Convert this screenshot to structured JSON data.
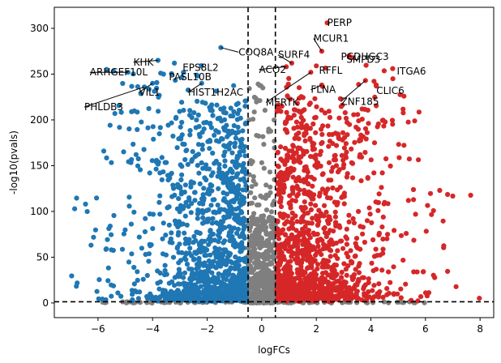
{
  "chart_data": {
    "type": "scatter",
    "title": "",
    "xlabel": "logFCs",
    "ylabel": "-log10(pvals)",
    "xlim": [
      -7.6,
      8.5
    ],
    "ylim": [
      -16,
      323
    ],
    "xticks": [
      -6,
      -4,
      -2,
      0,
      2,
      4,
      6,
      8
    ],
    "yticks": [
      0,
      50,
      100,
      150,
      200,
      250,
      300
    ],
    "grid": false,
    "legend": "none",
    "thresholds": {
      "logfc": [
        -0.5,
        0.5
      ],
      "neglog10p": 1.3
    },
    "colors": {
      "down": "#1f77b4",
      "up": "#d62728",
      "ns": "#7f7f7f",
      "threshold_line": "#000000"
    },
    "labeled_genes": [
      {
        "name": "PERP",
        "x": 2.4,
        "y": 306,
        "tx": 2.4,
        "ty": 306
      },
      {
        "name": "MCUR1",
        "x": 2.2,
        "y": 275,
        "tx": 1.9,
        "ty": 289
      },
      {
        "name": "SURF4",
        "x": 1.1,
        "y": 262,
        "tx": 0.6,
        "ty": 271
      },
      {
        "name": "COQ8A",
        "x": -1.5,
        "y": 279,
        "tx": -0.85,
        "ty": 274
      },
      {
        "name": "PCDHGC3",
        "x": 3.2,
        "y": 270,
        "tx": 2.9,
        "ty": 269
      },
      {
        "name": "SMPD3",
        "x": 3.3,
        "y": 268,
        "tx": 3.1,
        "ty": 266
      },
      {
        "name": "KHK",
        "x": -3.8,
        "y": 265,
        "tx": -4.7,
        "ty": 263
      },
      {
        "name": "EPS8L2",
        "x": -3.2,
        "y": 262,
        "tx": -2.9,
        "ty": 257
      },
      {
        "name": "ACO2",
        "x": 0.9,
        "y": 258,
        "tx": -0.1,
        "ty": 255
      },
      {
        "name": "RFFL",
        "x": 2.0,
        "y": 259,
        "tx": 2.1,
        "ty": 254
      },
      {
        "name": "ARHGEF10L",
        "x": -4.9,
        "y": 252,
        "tx": -6.3,
        "ty": 252
      },
      {
        "name": "PASL10B",
        "x": -3.6,
        "y": 250,
        "tx": -3.4,
        "ty": 247
      },
      {
        "name": "ITGA6",
        "x": 4.8,
        "y": 256,
        "tx": 4.95,
        "ty": 253
      },
      {
        "name": "FLNA",
        "x": 2.2,
        "y": 238,
        "tx": 1.8,
        "ty": 233
      },
      {
        "name": "CLIC6",
        "x": 4.2,
        "y": 237,
        "tx": 4.2,
        "ty": 232
      },
      {
        "name": "VIL1",
        "x": -4.0,
        "y": 240,
        "tx": -4.5,
        "ty": 230
      },
      {
        "name": "HIST1H2AC",
        "x": -2.2,
        "y": 240,
        "tx": -2.7,
        "ty": 230
      },
      {
        "name": "MERTK",
        "x": 1.8,
        "y": 252,
        "tx": 0.15,
        "ty": 219
      },
      {
        "name": "ZNF185",
        "x": 3.8,
        "y": 243,
        "tx": 2.9,
        "ty": 220
      },
      {
        "name": "PHLDB3",
        "x": -4.3,
        "y": 236,
        "tx": -6.5,
        "ty": 214
      }
    ]
  }
}
